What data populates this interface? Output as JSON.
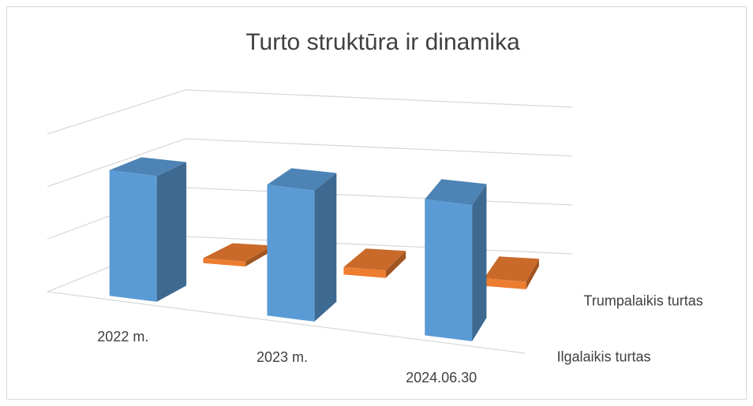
{
  "chart_data": {
    "type": "bar3d",
    "title": "Turto struktūra ir dinamika",
    "categories": [
      "2022 m.",
      "2023 m.",
      "2024.06.30"
    ],
    "series": [
      {
        "name": "Ilgalaikis turtas",
        "color": "#5b9bd5",
        "values": [
          2.4,
          2.5,
          2.6
        ]
      },
      {
        "name": "Trumpalaikis turtas",
        "color": "#ed7d31",
        "values": [
          0.1,
          0.15,
          0.15
        ]
      }
    ],
    "ylim": [
      0,
      3
    ],
    "yticks": [
      0,
      1,
      2,
      3
    ],
    "grid": true
  }
}
